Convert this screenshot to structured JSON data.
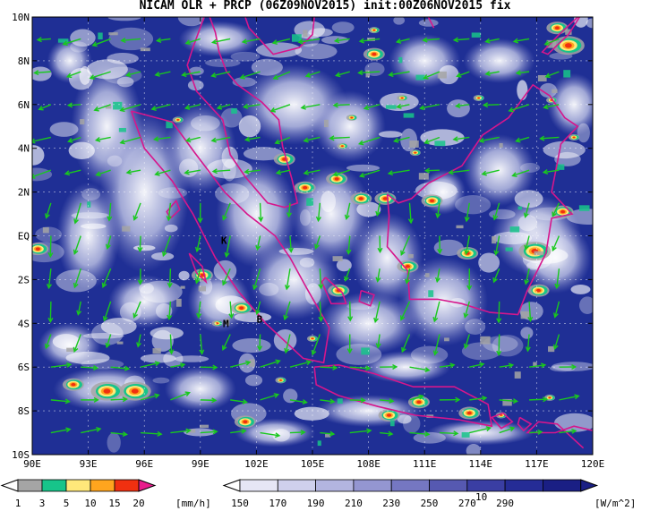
{
  "title": "NICAM OLR + PRCP (06Z09NOV2015) init:00Z06NOV2015 fix",
  "map": {
    "x_ticks": [
      "90E",
      "93E",
      "96E",
      "99E",
      "102E",
      "105E",
      "108E",
      "111E",
      "114E",
      "117E",
      "120E"
    ],
    "y_ticks": [
      "10N",
      "8N",
      "6N",
      "4N",
      "2N",
      "EQ",
      "2S",
      "4S",
      "6S",
      "8S",
      "10S"
    ],
    "markers": [
      {
        "label": "K",
        "lon": 100.3,
        "lat": -0.2
      },
      {
        "label": "M",
        "lon": 100.4,
        "lat": -4.0
      },
      {
        "label": "B",
        "lon": 102.2,
        "lat": -3.8
      }
    ],
    "vector_reference": {
      "label": "10"
    },
    "colors": {
      "background": "#1f2f95",
      "coast": "#d6168c",
      "wind": "#19c81e",
      "cloud": "#ffffff"
    }
  },
  "precip_colorbar": {
    "labels": [
      "1",
      "3",
      "5",
      "10",
      "15",
      "20"
    ],
    "unit": "[mm/h]",
    "colors": [
      "#a5a5a5",
      "#17c48a",
      "#ffe87a",
      "#ffa51e",
      "#f03010",
      "#e81c8c"
    ]
  },
  "olr_colorbar": {
    "labels": [
      "150",
      "170",
      "190",
      "210",
      "230",
      "250",
      "270",
      "290"
    ],
    "unit": "[W/m^2]",
    "colors": [
      "#ffffff",
      "#e6e6f5",
      "#cfd0ec",
      "#b3b5e0",
      "#9496d1",
      "#7577c2",
      "#5659b1",
      "#3a3ea3",
      "#252c96",
      "#1a1f84"
    ]
  }
}
